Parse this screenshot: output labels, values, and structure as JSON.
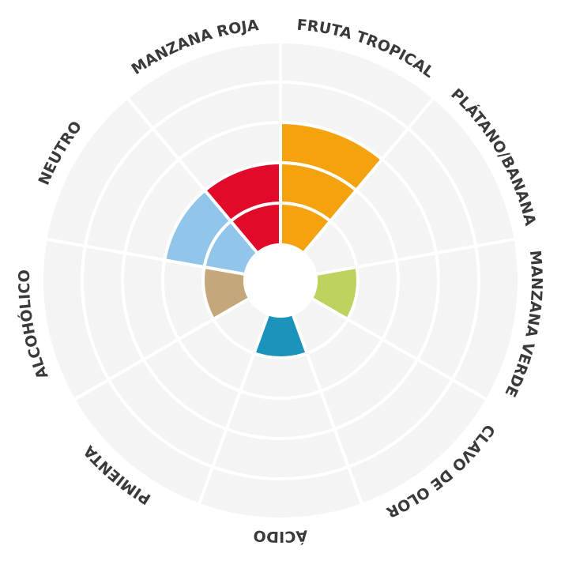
{
  "chart_data": {
    "type": "polar-area",
    "categories": [
      "FRUTA TROPICAL",
      "PLÁTANO/BANANA",
      "MANZANA VERDE",
      "CLAVO DE OLOR",
      "ÁCIDO",
      "PIMIENTA",
      "ALCOHÓLICO",
      "NEUTRO",
      "MANZANA ROJA"
    ],
    "values": [
      3,
      0,
      1,
      0,
      1,
      0,
      1,
      2,
      2
    ],
    "colors": [
      "#f4a30f",
      null,
      "#bcd35f",
      null,
      "#1b93bb",
      null,
      "#c4a77a",
      "#92c5ea",
      "#e10a2a"
    ],
    "rlim": [
      0,
      5
    ],
    "rticks": [
      1,
      2,
      3,
      4,
      5
    ],
    "grid": true
  }
}
